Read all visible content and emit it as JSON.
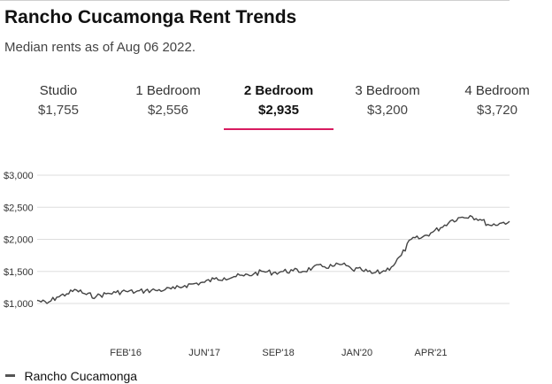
{
  "header": {
    "title": "Rancho Cucamonga Rent Trends",
    "subtitle": "Median rents as of Aug 06 2022."
  },
  "tabs": [
    {
      "label": "Studio",
      "value": "$1,755",
      "active": false
    },
    {
      "label": "1 Bedroom",
      "value": "$2,556",
      "active": false
    },
    {
      "label": "2 Bedroom",
      "value": "$2,935",
      "active": true
    },
    {
      "label": "3 Bedroom",
      "value": "$3,200",
      "active": false
    },
    {
      "label": "4 Bedroom",
      "value": "$3,720",
      "active": false
    }
  ],
  "colors": {
    "accent": "#d81b60",
    "line": "#444444",
    "grid": "#dddddd"
  },
  "chart_data": {
    "type": "line",
    "y_ticks": [
      "$3,000",
      "$2,500",
      "$2,000",
      "$1,500",
      "$1,000"
    ],
    "x_ticks": [
      "FEB'16",
      "JUN'17",
      "SEP'18",
      "JAN'20",
      "APR'21"
    ],
    "ylim": [
      1000,
      3000
    ],
    "legend_position": "bottom-left",
    "series": [
      {
        "name": "Rancho Cucamonga",
        "x": [
          "2014-08",
          "2014-10",
          "2014-12",
          "2015-02",
          "2015-04",
          "2015-06",
          "2015-08",
          "2015-10",
          "2015-12",
          "2016-02",
          "2016-04",
          "2016-06",
          "2016-08",
          "2016-10",
          "2016-12",
          "2017-02",
          "2017-04",
          "2017-06",
          "2017-08",
          "2017-10",
          "2017-12",
          "2018-02",
          "2018-04",
          "2018-06",
          "2018-08",
          "2018-10",
          "2018-12",
          "2019-02",
          "2019-04",
          "2019-06",
          "2019-08",
          "2019-10",
          "2019-12",
          "2020-02",
          "2020-04",
          "2020-06",
          "2020-08",
          "2020-10",
          "2020-12",
          "2021-02",
          "2021-04",
          "2021-06",
          "2021-08",
          "2021-10",
          "2021-12",
          "2022-02",
          "2022-04",
          "2022-06",
          "2022-08"
        ],
        "values": [
          1050,
          1000,
          1100,
          1150,
          1210,
          1140,
          1110,
          1150,
          1170,
          1190,
          1180,
          1200,
          1205,
          1215,
          1230,
          1280,
          1310,
          1330,
          1380,
          1400,
          1420,
          1430,
          1460,
          1500,
          1480,
          1500,
          1510,
          1500,
          1560,
          1575,
          1580,
          1610,
          1530,
          1520,
          1470,
          1490,
          1570,
          1750,
          2000,
          2020,
          2100,
          2180,
          2290,
          2340,
          2370,
          2310,
          2220,
          2250,
          2280
        ]
      }
    ]
  }
}
